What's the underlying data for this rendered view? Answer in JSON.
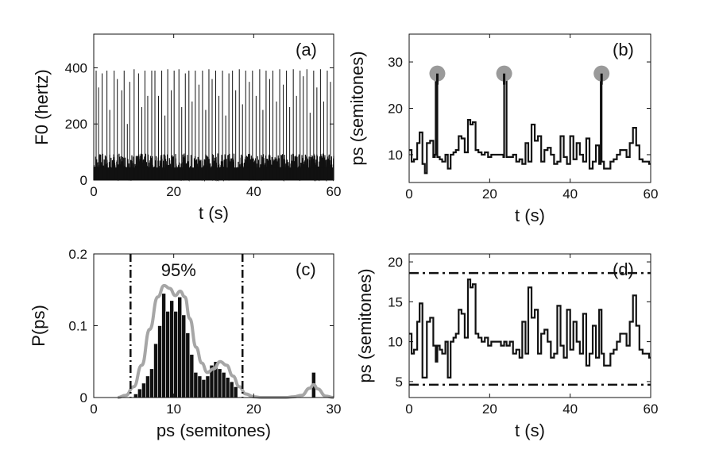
{
  "colors": {
    "trace": "#111111",
    "density": "#a6a6a6",
    "marker": "#9a9a9a",
    "bar": "#111111"
  },
  "chart_data": [
    {
      "panel": "(a)",
      "type": "line",
      "xlabel": "t (s)",
      "ylabel": "F0 (hertz)",
      "xlim": [
        0,
        60
      ],
      "ylim": [
        0,
        520
      ],
      "xticks": [
        0,
        20,
        40,
        60
      ],
      "yticks": [
        0,
        200,
        400
      ],
      "grid": false,
      "description_values": {
        "baseline_range": [
          0,
          95
        ],
        "spike_max": 400,
        "spikes": [
          [
            0.6,
            390
          ],
          [
            1.2,
            330
          ],
          [
            2.1,
            380
          ],
          [
            3.3,
            390
          ],
          [
            4.0,
            250
          ],
          [
            5.1,
            390
          ],
          [
            5.9,
            360
          ],
          [
            7.0,
            320
          ],
          [
            7.6,
            390
          ],
          [
            8.4,
            200
          ],
          [
            9.0,
            350
          ],
          [
            10.1,
            395
          ],
          [
            11.2,
            380
          ],
          [
            12.0,
            260
          ],
          [
            12.8,
            390
          ],
          [
            13.5,
            300
          ],
          [
            14.5,
            390
          ],
          [
            15.3,
            390
          ],
          [
            16.2,
            300
          ],
          [
            17.0,
            390
          ],
          [
            17.8,
            230
          ],
          [
            18.5,
            395
          ],
          [
            19.4,
            320
          ],
          [
            20.1,
            390
          ],
          [
            21.3,
            395
          ],
          [
            22.0,
            260
          ],
          [
            22.9,
            380
          ],
          [
            23.8,
            390
          ],
          [
            24.6,
            280
          ],
          [
            25.4,
            390
          ],
          [
            26.3,
            340
          ],
          [
            27.2,
            390
          ],
          [
            28.0,
            250
          ],
          [
            28.8,
            395
          ],
          [
            29.6,
            360
          ],
          [
            30.5,
            390
          ],
          [
            31.3,
            300
          ],
          [
            32.2,
            390
          ],
          [
            33.0,
            230
          ],
          [
            33.8,
            380
          ],
          [
            34.7,
            390
          ],
          [
            35.5,
            320
          ],
          [
            36.4,
            395
          ],
          [
            37.2,
            270
          ],
          [
            38.0,
            390
          ],
          [
            38.9,
            350
          ],
          [
            39.7,
            390
          ],
          [
            40.6,
            300
          ],
          [
            41.5,
            395
          ],
          [
            42.3,
            250
          ],
          [
            43.1,
            390
          ],
          [
            44.0,
            360
          ],
          [
            44.8,
            390
          ],
          [
            45.7,
            280
          ],
          [
            46.5,
            395
          ],
          [
            47.4,
            340
          ],
          [
            48.2,
            390
          ],
          [
            49.0,
            260
          ],
          [
            49.9,
            395
          ],
          [
            50.7,
            300
          ],
          [
            51.6,
            390
          ],
          [
            52.4,
            370
          ],
          [
            53.3,
            395
          ],
          [
            54.1,
            240
          ],
          [
            55.0,
            390
          ],
          [
            55.8,
            330
          ],
          [
            56.7,
            395
          ],
          [
            57.5,
            280
          ],
          [
            58.4,
            390
          ],
          [
            59.2,
            350
          ]
        ]
      }
    },
    {
      "panel": "(b)",
      "type": "line",
      "xlabel": "t (s)",
      "ylabel": "ps (semitones)",
      "xlim": [
        0,
        60
      ],
      "ylim": [
        4,
        36
      ],
      "xticks": [
        0,
        20,
        40,
        60
      ],
      "yticks": [
        10,
        20,
        30
      ],
      "grid": false,
      "series": [
        {
          "x": [
            0,
            0.6,
            1.2,
            2.0,
            2.6,
            3.3,
            3.9,
            4.4,
            5.2,
            6.0,
            6.4,
            6.6,
            7.0,
            7.6,
            8.2,
            9.0,
            9.6,
            10.3,
            11.0,
            11.6,
            12.3,
            13.0,
            13.8,
            14.6,
            15.2,
            15.8,
            16.5,
            17.2,
            18.0,
            18.8,
            19.6,
            20.4,
            21.2,
            22.0,
            22.8,
            23.4,
            23.6,
            24.2,
            25.0,
            25.8,
            26.6,
            27.4,
            28.1,
            28.9,
            29.6,
            30.4,
            31.2,
            32.0,
            32.8,
            33.6,
            34.4,
            35.2,
            36.0,
            36.8,
            37.6,
            38.4,
            39.2,
            40.0,
            40.8,
            41.6,
            42.4,
            43.2,
            44.0,
            44.8,
            45.6,
            46.4,
            47.2,
            47.6,
            47.8,
            48.4,
            49.2,
            50.0,
            50.8,
            51.6,
            52.4,
            53.2,
            54.0,
            54.8,
            55.6,
            56.4,
            57.2,
            58.0,
            58.8,
            59.6,
            60
          ],
          "y": [
            11,
            8.5,
            9,
            12.5,
            14.8,
            8,
            6,
            12.5,
            13,
            9.5,
            10,
            27.5,
            9.5,
            9,
            8.5,
            10,
            7,
            10,
            10.5,
            11,
            14,
            13.5,
            10.5,
            17.5,
            16.5,
            17,
            11,
            10.5,
            10,
            10.5,
            9.5,
            10,
            10,
            10,
            10,
            9.5,
            27.5,
            9.5,
            9.5,
            10,
            8.5,
            9,
            8,
            12.5,
            8.5,
            16.5,
            13,
            14,
            8.5,
            11,
            11.5,
            10,
            8,
            8.5,
            14,
            9.5,
            8,
            14,
            9,
            12.5,
            10,
            8.5,
            13.5,
            7,
            8.5,
            12,
            8,
            27.5,
            8.5,
            7,
            7,
            8.5,
            9,
            10,
            11,
            11,
            9.5,
            12.5,
            15.8,
            12,
            9,
            8.5,
            8.5,
            8,
            8
          ]
        }
      ],
      "markers": [
        [
          7.0,
          27.5
        ],
        [
          23.6,
          27.5
        ],
        [
          47.8,
          27.5
        ]
      ]
    },
    {
      "panel": "(c)",
      "type": "bar",
      "xlabel": "ps (semitones)",
      "ylabel": "P(ps)",
      "xlim": [
        0,
        30
      ],
      "ylim": [
        0,
        0.2
      ],
      "xticks": [
        0,
        10,
        20,
        30
      ],
      "yticks": [
        0,
        0.1,
        0.2
      ],
      "ytick_labels": [
        "0",
        "0.1",
        "0.2"
      ],
      "annotation": "95%",
      "bounds": [
        4.6,
        18.6
      ],
      "bar_width": 0.5,
      "bars": {
        "x": [
          5.25,
          5.75,
          6.25,
          6.75,
          7.25,
          7.75,
          8.25,
          8.75,
          9.25,
          9.75,
          10.25,
          10.75,
          11.25,
          11.75,
          12.25,
          12.75,
          13.25,
          13.75,
          14.25,
          14.75,
          15.25,
          15.75,
          16.25,
          16.75,
          17.25,
          17.75,
          27.5
        ],
        "y": [
          0.005,
          0.012,
          0.02,
          0.03,
          0.04,
          0.075,
          0.1,
          0.145,
          0.12,
          0.135,
          0.12,
          0.14,
          0.115,
          0.09,
          0.06,
          0.035,
          0.03,
          0.025,
          0.03,
          0.045,
          0.05,
          0.04,
          0.035,
          0.028,
          0.022,
          0.015,
          0.035
        ]
      },
      "density": {
        "x": [
          3,
          4,
          5,
          6,
          7,
          8,
          8.8,
          9.5,
          10.2,
          10.8,
          11.4,
          12,
          12.8,
          13.5,
          14.2,
          15,
          15.8,
          16.6,
          17.4,
          18.2,
          19,
          20,
          21,
          22,
          23,
          24,
          25,
          26,
          27,
          27.5,
          28,
          29,
          30
        ],
        "y": [
          0,
          0.003,
          0.015,
          0.045,
          0.095,
          0.14,
          0.156,
          0.152,
          0.142,
          0.148,
          0.14,
          0.11,
          0.07,
          0.048,
          0.035,
          0.04,
          0.05,
          0.045,
          0.03,
          0.015,
          0.005,
          0.001,
          0,
          0,
          0,
          0,
          0.001,
          0.003,
          0.013,
          0.018,
          0.012,
          0.002,
          0
        ]
      }
    },
    {
      "panel": "(d)",
      "type": "line",
      "xlabel": "t (s)",
      "ylabel": "ps (semitones)",
      "xlim": [
        0,
        60
      ],
      "ylim": [
        3,
        21
      ],
      "xticks": [
        0,
        20,
        40,
        60
      ],
      "yticks": [
        5,
        10,
        15,
        20
      ],
      "grid": false,
      "bounds": [
        4.6,
        18.6
      ],
      "series": [
        {
          "x": [
            0,
            0.6,
            1.2,
            2.0,
            2.6,
            3.3,
            3.9,
            4.4,
            5.2,
            6.0,
            6.6,
            7.0,
            7.6,
            8.2,
            9.0,
            9.6,
            10.3,
            11.0,
            11.6,
            12.3,
            13.0,
            13.8,
            14.6,
            15.2,
            15.8,
            16.5,
            17.2,
            18.0,
            18.8,
            19.6,
            20.4,
            21.2,
            22.0,
            22.8,
            23.6,
            24.2,
            25.0,
            25.8,
            26.6,
            27.4,
            28.1,
            28.9,
            29.6,
            30.4,
            31.2,
            32.0,
            32.8,
            33.6,
            34.4,
            35.2,
            36.0,
            36.8,
            37.6,
            38.4,
            39.2,
            40.0,
            40.8,
            41.6,
            42.4,
            43.2,
            44.0,
            44.8,
            45.6,
            46.4,
            47.2,
            47.8,
            48.4,
            49.2,
            50.0,
            50.8,
            51.6,
            52.4,
            53.2,
            54.0,
            54.8,
            55.6,
            56.4,
            57.2,
            58.0,
            58.8,
            59.6,
            60
          ],
          "y": [
            11,
            8.5,
            9,
            12.5,
            14.8,
            5.5,
            5.5,
            12.5,
            13,
            9.5,
            7.5,
            9.5,
            9,
            8.5,
            10,
            5.5,
            10,
            10.5,
            11,
            14,
            13.5,
            10.5,
            17.8,
            16.8,
            17.2,
            11,
            10.5,
            10,
            10.5,
            9.5,
            10,
            10,
            10,
            9.5,
            10,
            9.5,
            10,
            8.5,
            9,
            8,
            12.5,
            8.5,
            16.8,
            13,
            14,
            8.5,
            11,
            11.5,
            10,
            8,
            8.5,
            14.5,
            9.5,
            8,
            14,
            9,
            12.5,
            10,
            8.5,
            13.5,
            7,
            8.5,
            12,
            8,
            14,
            8.5,
            7,
            7,
            8.5,
            9,
            10,
            11,
            11,
            9.5,
            12.5,
            15.8,
            12,
            9,
            8.5,
            8.5,
            8,
            8
          ]
        }
      ]
    }
  ]
}
